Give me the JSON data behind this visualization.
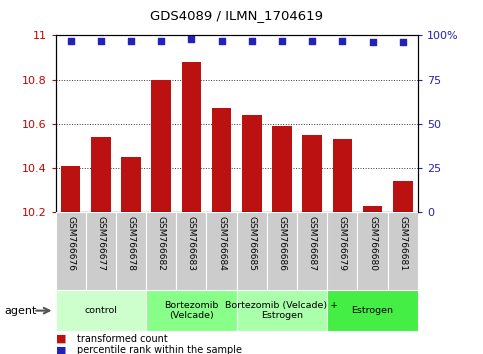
{
  "title": "GDS4089 / ILMN_1704619",
  "samples": [
    "GSM766676",
    "GSM766677",
    "GSM766678",
    "GSM766682",
    "GSM766683",
    "GSM766684",
    "GSM766685",
    "GSM766686",
    "GSM766687",
    "GSM766679",
    "GSM766680",
    "GSM766681"
  ],
  "values": [
    10.41,
    10.54,
    10.45,
    10.8,
    10.88,
    10.67,
    10.64,
    10.59,
    10.55,
    10.53,
    10.23,
    10.34
  ],
  "percentile_values": [
    97,
    97,
    97,
    97,
    98,
    97,
    97,
    97,
    97,
    97,
    96,
    96
  ],
  "bar_color": "#bb1111",
  "dot_color": "#2222bb",
  "ylim": [
    10.2,
    11.0
  ],
  "yticks": [
    10.2,
    10.4,
    10.6,
    10.8,
    11.0
  ],
  "ytick_labels": [
    "10.2",
    "10.4",
    "10.6",
    "10.8",
    "11"
  ],
  "right_yticks": [
    0,
    25,
    50,
    75,
    100
  ],
  "right_ytick_labels": [
    "0",
    "25",
    "50",
    "75",
    "100%"
  ],
  "left_axis_color": "#cc0000",
  "right_axis_color": "#2222bb",
  "groups": [
    {
      "label": "control",
      "start": 0,
      "end": 3,
      "color": "#ccffcc"
    },
    {
      "label": "Bortezomib\n(Velcade)",
      "start": 3,
      "end": 6,
      "color": "#88ff88"
    },
    {
      "label": "Bortezomib (Velcade) +\nEstrogen",
      "start": 6,
      "end": 9,
      "color": "#aaffaa"
    },
    {
      "label": "Estrogen",
      "start": 9,
      "end": 12,
      "color": "#44ee44"
    }
  ],
  "legend_bar_label": "transformed count",
  "legend_dot_label": "percentile rank within the sample",
  "agent_label": "agent",
  "sample_bg_color": "#cccccc",
  "grid_color": "#333333",
  "grid_linestyle": ":",
  "grid_linewidth": 0.7,
  "grid_yticks": [
    10.4,
    10.6,
    10.8
  ]
}
